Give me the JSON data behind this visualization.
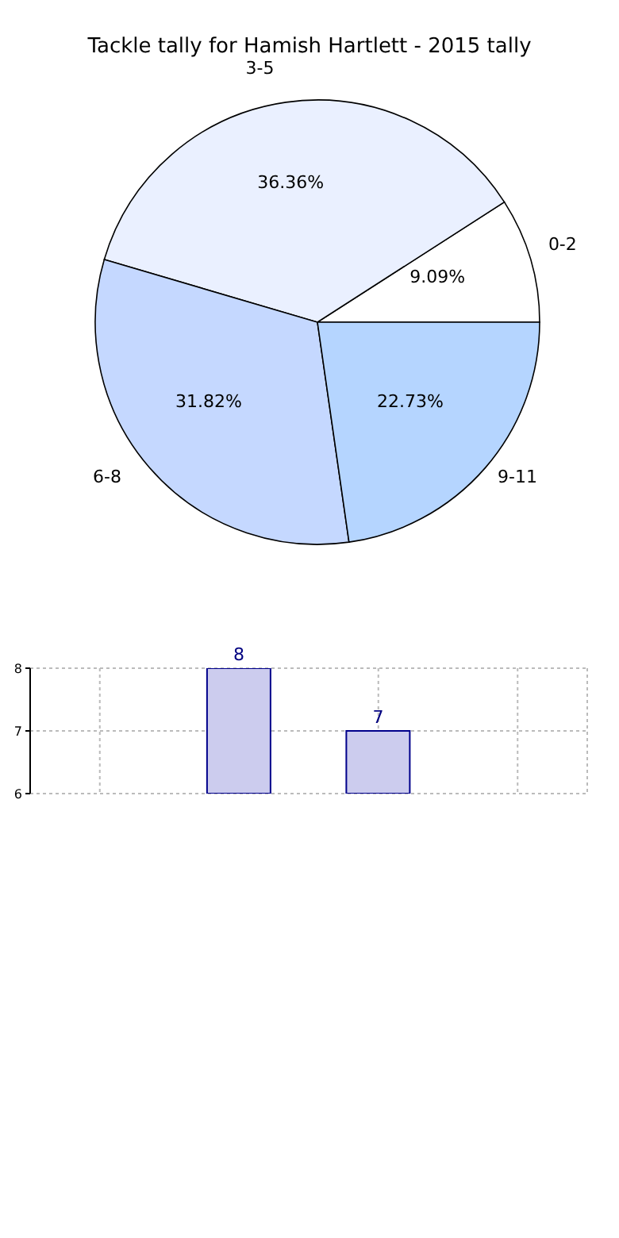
{
  "chart_data": [
    {
      "type": "pie",
      "title": "Tackle tally for Hamish Hartlett - 2015 tally",
      "categories": [
        "0-2",
        "3-5",
        "6-8",
        "9-11"
      ],
      "values": [
        9.09,
        36.36,
        31.82,
        22.73
      ],
      "value_labels": [
        "9.09%",
        "36.36%",
        "31.82%",
        "22.73%"
      ],
      "colors": [
        "#ffffff",
        "#eaf0ff",
        "#c5d8ff",
        "#b5d5ff"
      ]
    },
    {
      "type": "bar",
      "categories": [
        null,
        null,
        null,
        null
      ],
      "values": [
        null,
        8,
        7,
        null
      ],
      "color": "#ccccee",
      "ylim": [
        6,
        8
      ],
      "yticks": [
        6,
        7,
        8
      ],
      "grid": true,
      "data_labels": true,
      "tick_labels": "y"
    }
  ]
}
